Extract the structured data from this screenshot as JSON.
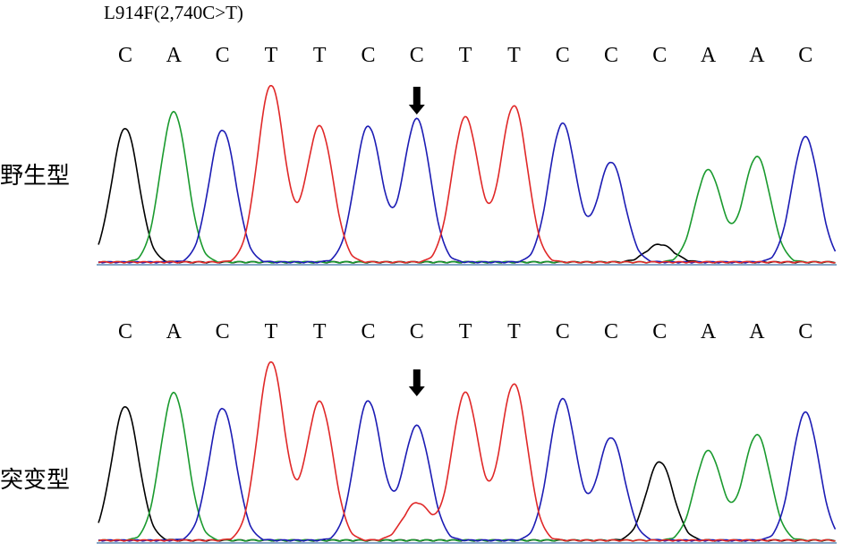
{
  "title": "L914F(2,740C>T)",
  "colors": {
    "A": "#1a9a2e",
    "C": "#1c1cb4",
    "G": "#000000",
    "T": "#e02828",
    "baseline": "#3a6ea5",
    "text": "#000000"
  },
  "panels": [
    {
      "label": "野生型",
      "bases": [
        "C",
        "A",
        "C",
        "T",
        "T",
        "C",
        "C",
        "T",
        "T",
        "C",
        "C",
        "C",
        "A",
        "A",
        "C"
      ],
      "arrow_at_index": 6,
      "chart_data": {
        "type": "line",
        "title": "",
        "xlabel": "",
        "ylabel": "",
        "series": [
          {
            "name": "G",
            "peaks": [
              [
                0,
                150
              ],
              [
                11,
                20
              ]
            ]
          },
          {
            "name": "A",
            "peaks": [
              [
                1,
                168
              ],
              [
                12,
                103
              ],
              [
                13,
                118
              ]
            ]
          },
          {
            "name": "C",
            "peaks": [
              [
                2,
                148
              ],
              [
                5,
                152
              ],
              [
                6,
                160
              ],
              [
                9,
                155
              ],
              [
                10,
                112
              ],
              [
                14,
                140
              ]
            ]
          },
          {
            "name": "T",
            "peaks": [
              [
                3,
                198
              ],
              [
                4,
                152
              ],
              [
                7,
                162
              ],
              [
                8,
                175
              ]
            ]
          }
        ]
      }
    },
    {
      "label": "突变型",
      "bases": [
        "C",
        "A",
        "C",
        "T",
        "T",
        "C",
        "C",
        "T",
        "T",
        "C",
        "C",
        "C",
        "A",
        "A",
        "C"
      ],
      "arrow_at_index": 6,
      "chart_data": {
        "type": "line",
        "title": "",
        "xlabel": "",
        "ylabel": "",
        "series": [
          {
            "name": "G",
            "peaks": [
              [
                0,
                150
              ],
              [
                11,
                88
              ]
            ]
          },
          {
            "name": "A",
            "peaks": [
              [
                1,
                165
              ],
              [
                12,
                100
              ],
              [
                13,
                118
              ]
            ]
          },
          {
            "name": "C",
            "peaks": [
              [
                2,
                148
              ],
              [
                5,
                156
              ],
              [
                6,
                128
              ],
              [
                9,
                158
              ],
              [
                10,
                115
              ],
              [
                14,
                143
              ]
            ]
          },
          {
            "name": "T",
            "peaks": [
              [
                3,
                200
              ],
              [
                4,
                155
              ],
              [
                6,
                42
              ],
              [
                7,
                165
              ],
              [
                8,
                175
              ]
            ]
          }
        ]
      }
    }
  ]
}
